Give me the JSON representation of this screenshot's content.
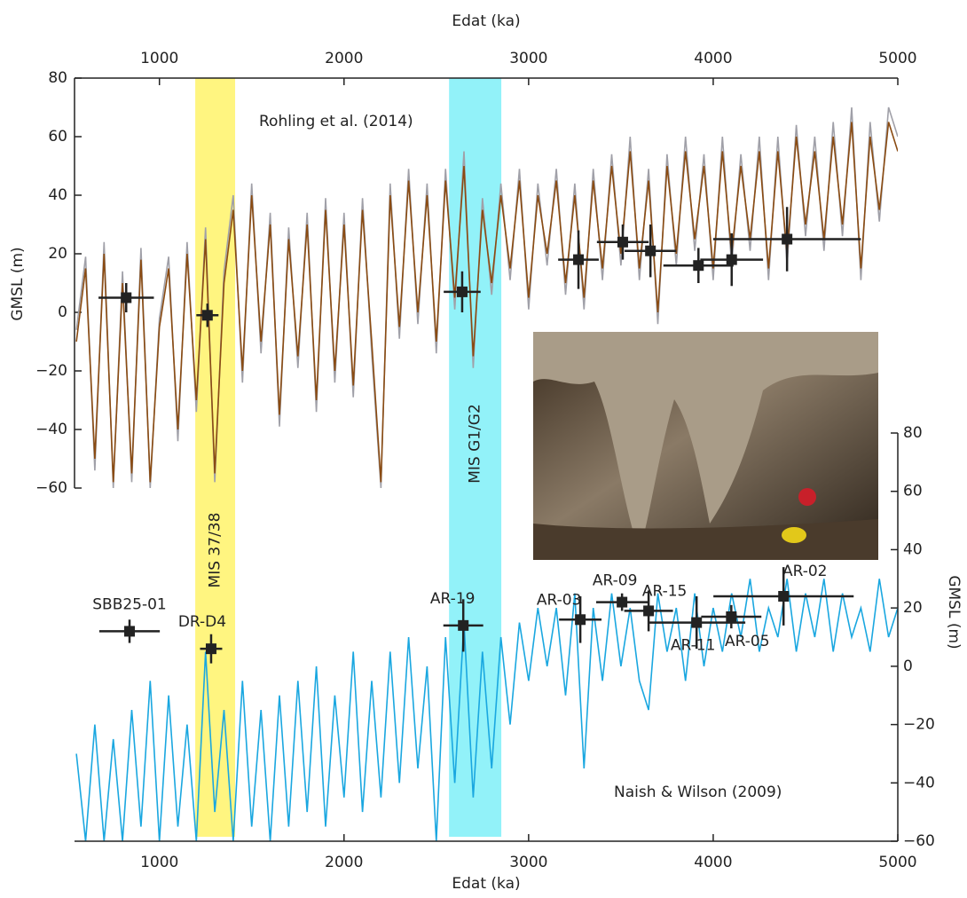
{
  "chart_data": [
    {
      "type": "line",
      "xlabel": "Edat (ka)",
      "ylabel": "GMSL  (m)",
      "annotation": "Rohling et al. (2014)",
      "xlim": [
        540,
        5000
      ],
      "xticks": [
        1000,
        2000,
        3000,
        4000,
        5000
      ],
      "ylim": [
        -60,
        80
      ],
      "yticks": [
        -60,
        -40,
        -20,
        0,
        20,
        40,
        60,
        80
      ],
      "bands": [
        {
          "label": "MIS 37/38",
          "range": [
            1194,
            1410
          ],
          "color": "#fff36a"
        },
        {
          "label": "MIS G1/G2",
          "range": [
            2569,
            2852
          ],
          "color": "#7ff0f8"
        }
      ],
      "x": [
        550,
        600,
        650,
        700,
        750,
        800,
        850,
        900,
        950,
        1000,
        1050,
        1100,
        1150,
        1200,
        1250,
        1300,
        1350,
        1400,
        1450,
        1500,
        1550,
        1600,
        1650,
        1700,
        1750,
        1800,
        1850,
        1900,
        1950,
        2000,
        2050,
        2100,
        2150,
        2200,
        2250,
        2300,
        2350,
        2400,
        2450,
        2500,
        2550,
        2600,
        2650,
        2700,
        2750,
        2800,
        2850,
        2900,
        2950,
        3000,
        3050,
        3100,
        3150,
        3200,
        3250,
        3300,
        3350,
        3400,
        3450,
        3500,
        3550,
        3600,
        3650,
        3700,
        3750,
        3800,
        3850,
        3900,
        3950,
        4000,
        4050,
        4100,
        4150,
        4200,
        4250,
        4300,
        4350,
        4400,
        4450,
        4500,
        4550,
        4600,
        4650,
        4700,
        4750,
        4800,
        4850,
        4900,
        4950,
        5000
      ],
      "series": [
        {
          "color": "#a0a0a8",
          "values": [
            -6,
            19,
            -54,
            24,
            -60,
            14,
            -58,
            22,
            -60,
            -2,
            19,
            -44,
            24,
            -34,
            29,
            -58,
            14,
            40,
            -24,
            44,
            -14,
            34,
            -39,
            29,
            -19,
            34,
            -34,
            39,
            -24,
            34,
            -29,
            39,
            -14,
            -60,
            44,
            -9,
            49,
            -4,
            44,
            -14,
            49,
            1,
            55,
            -19,
            39,
            6,
            44,
            11,
            49,
            1,
            44,
            16,
            49,
            6,
            44,
            1,
            49,
            11,
            54,
            16,
            60,
            11,
            49,
            -4,
            54,
            16,
            60,
            21,
            54,
            11,
            60,
            16,
            54,
            21,
            60,
            11,
            60,
            16,
            64,
            26,
            60,
            21,
            65,
            26,
            70,
            11,
            65,
            31,
            70,
            60
          ]
        },
        {
          "color": "#8a4b12",
          "values": [
            -10,
            15,
            -50,
            20,
            -58,
            10,
            -55,
            18,
            -58,
            -5,
            15,
            -40,
            20,
            -30,
            25,
            -55,
            10,
            35,
            -20,
            40,
            -10,
            30,
            -35,
            25,
            -15,
            30,
            -30,
            35,
            -20,
            30,
            -25,
            35,
            -10,
            -58,
            40,
            -5,
            45,
            0,
            40,
            -10,
            45,
            5,
            50,
            -15,
            35,
            10,
            40,
            15,
            45,
            5,
            40,
            20,
            45,
            10,
            40,
            5,
            45,
            15,
            50,
            20,
            55,
            15,
            45,
            0,
            50,
            20,
            55,
            25,
            50,
            15,
            55,
            20,
            50,
            25,
            55,
            15,
            55,
            20,
            60,
            30,
            55,
            25,
            60,
            30,
            65,
            15,
            60,
            35,
            65,
            55
          ]
        }
      ],
      "points": {
        "color": "#222222",
        "x": [
          820,
          1260,
          2640,
          3270,
          3510,
          3660,
          3920,
          4100,
          4400
        ],
        "y": [
          5,
          -1,
          7,
          18,
          24,
          21,
          16,
          18,
          25
        ],
        "xerr": [
          150,
          60,
          100,
          110,
          140,
          140,
          190,
          170,
          400
        ],
        "yerr": [
          5,
          4,
          7,
          10,
          6,
          9,
          6,
          9,
          11
        ]
      }
    },
    {
      "type": "line",
      "xlabel": "Edat (ka)",
      "ylabel": "GMSL (m)",
      "annotation": "Naish & Wilson (2009)",
      "xlim": [
        540,
        5000
      ],
      "xticks": [
        1000,
        2000,
        3000,
        4000,
        5000
      ],
      "ylim": [
        -60,
        80
      ],
      "yticks": [
        -60,
        -40,
        -20,
        0,
        20,
        40,
        60,
        80
      ],
      "x": [
        550,
        600,
        650,
        700,
        750,
        800,
        850,
        900,
        950,
        1000,
        1050,
        1100,
        1150,
        1200,
        1250,
        1300,
        1350,
        1400,
        1450,
        1500,
        1550,
        1600,
        1650,
        1700,
        1750,
        1800,
        1850,
        1900,
        1950,
        2000,
        2050,
        2100,
        2150,
        2200,
        2250,
        2300,
        2350,
        2400,
        2450,
        2500,
        2550,
        2600,
        2650,
        2700,
        2750,
        2800,
        2850,
        2900,
        2950,
        3000,
        3050,
        3100,
        3150,
        3200,
        3250,
        3300,
        3350,
        3400,
        3450,
        3500,
        3550,
        3600,
        3650,
        3700,
        3750,
        3800,
        3850,
        3900,
        3950,
        4000,
        4050,
        4100,
        4150,
        4200,
        4250,
        4300,
        4350,
        4400,
        4450,
        4500,
        4550,
        4600,
        4650,
        4700,
        4750,
        4800,
        4850,
        4900,
        4950,
        5000
      ],
      "series": [
        {
          "color": "#1aa7e0",
          "values": [
            -30,
            -60,
            -20,
            -60,
            -25,
            -60,
            -15,
            -55,
            -5,
            -60,
            -10,
            -55,
            -20,
            -60,
            5,
            -50,
            -15,
            -60,
            -5,
            -55,
            -15,
            -60,
            -10,
            -55,
            -5,
            -50,
            0,
            -55,
            -10,
            -45,
            5,
            -50,
            -5,
            -45,
            5,
            -40,
            10,
            -35,
            0,
            -60,
            10,
            -40,
            15,
            -45,
            5,
            -35,
            10,
            -20,
            15,
            -5,
            20,
            0,
            20,
            -10,
            25,
            -35,
            20,
            -5,
            25,
            0,
            20,
            -5,
            -15,
            25,
            5,
            20,
            -5,
            25,
            0,
            20,
            5,
            25,
            10,
            30,
            5,
            20,
            10,
            30,
            5,
            25,
            10,
            30,
            5,
            25,
            10,
            20,
            5,
            30,
            10,
            20
          ]
        }
      ],
      "points": {
        "color": "#222222",
        "labels": [
          "SBB25-01",
          "DR-D4",
          "AR-19",
          "AR-03",
          "AR-09",
          "AR-15",
          "AR-11",
          "AR-05",
          "AR-02"
        ],
        "x": [
          838,
          1280,
          2646,
          3280,
          3506,
          3650,
          3910,
          4098,
          4381
        ],
        "y": [
          12,
          6,
          14,
          16,
          22,
          19,
          15,
          17,
          24
        ],
        "xerr": [
          164,
          60,
          108,
          115,
          140,
          132,
          264,
          163,
          380
        ],
        "yerr": [
          4,
          5,
          9,
          8,
          3,
          7,
          9,
          4,
          10
        ]
      }
    }
  ]
}
